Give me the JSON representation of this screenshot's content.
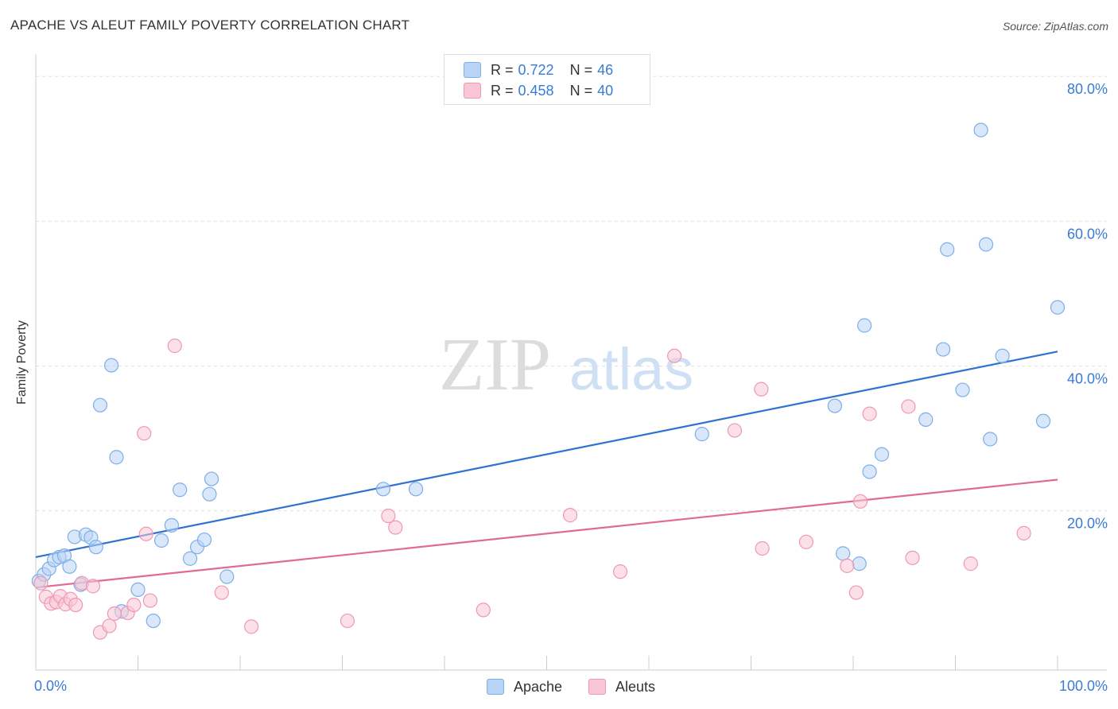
{
  "title": "APACHE VS ALEUT FAMILY POVERTY CORRELATION CHART",
  "source": "Source: ZipAtlas.com",
  "watermark": {
    "zip": "ZIP",
    "atlas": "atlas"
  },
  "legend": {
    "rows": [
      {
        "r_label": "R =",
        "r_value": "0.722",
        "n_label": "N =",
        "n_value": "46"
      },
      {
        "r_label": "R =",
        "r_value": "0.458",
        "n_label": "N =",
        "n_value": "40"
      }
    ]
  },
  "colors": {
    "apache_fill": "#b8d3f5",
    "apache_stroke": "#7eaee6",
    "apache_line": "#2f72d0",
    "aleut_fill": "#f9c6d5",
    "aleut_stroke": "#ef98b3",
    "aleut_line": "#e06b93",
    "grid": "#e0e0e0",
    "tick_text": "#3a7bd5"
  },
  "chart_data": {
    "type": "scatter",
    "title": "APACHE VS ALEUT FAMILY POVERTY CORRELATION CHART",
    "xlabel": "",
    "ylabel": "Family Poverty",
    "xlim": [
      0,
      100
    ],
    "ylim": [
      -2,
      82
    ],
    "x_tick_labels": [
      "0.0%",
      "100.0%"
    ],
    "y_ticks": [
      20,
      40,
      60,
      80
    ],
    "y_tick_labels": [
      "20.0%",
      "40.0%",
      "60.0%",
      "80.0%"
    ],
    "grid": "horizontal dashed",
    "legend_position": "top-center",
    "series": [
      {
        "name": "Apache",
        "trend": [
          [
            0,
            13.6
          ],
          [
            100,
            42.0
          ]
        ],
        "points": [
          [
            0.3,
            10.3
          ],
          [
            0.8,
            11.2
          ],
          [
            1.3,
            12.0
          ],
          [
            1.8,
            13.2
          ],
          [
            2.3,
            13.6
          ],
          [
            2.8,
            13.8
          ],
          [
            3.3,
            12.3
          ],
          [
            3.8,
            16.4
          ],
          [
            4.4,
            9.8
          ],
          [
            4.9,
            16.7
          ],
          [
            5.4,
            16.3
          ],
          [
            5.9,
            15.0
          ],
          [
            6.3,
            34.6
          ],
          [
            7.4,
            40.1
          ],
          [
            7.9,
            27.4
          ],
          [
            8.4,
            6.1
          ],
          [
            10.0,
            9.1
          ],
          [
            11.5,
            4.8
          ],
          [
            12.3,
            15.9
          ],
          [
            13.3,
            18.0
          ],
          [
            14.1,
            22.9
          ],
          [
            15.1,
            13.4
          ],
          [
            15.8,
            15.0
          ],
          [
            16.5,
            16.0
          ],
          [
            17.0,
            22.3
          ],
          [
            17.2,
            24.4
          ],
          [
            18.7,
            10.9
          ],
          [
            34.0,
            23.0
          ],
          [
            37.2,
            23.0
          ],
          [
            65.2,
            30.6
          ],
          [
            78.2,
            34.5
          ],
          [
            79.0,
            14.1
          ],
          [
            80.6,
            12.7
          ],
          [
            81.1,
            45.6
          ],
          [
            81.6,
            25.4
          ],
          [
            82.8,
            27.8
          ],
          [
            87.1,
            32.6
          ],
          [
            88.8,
            42.3
          ],
          [
            89.2,
            56.1
          ],
          [
            90.7,
            36.7
          ],
          [
            92.5,
            72.6
          ],
          [
            93.0,
            56.8
          ],
          [
            93.4,
            29.9
          ],
          [
            94.6,
            41.4
          ],
          [
            98.6,
            32.4
          ],
          [
            100.0,
            48.1
          ]
        ]
      },
      {
        "name": "Aleuts",
        "trend": [
          [
            0,
            9.4
          ],
          [
            100,
            24.3
          ]
        ],
        "points": [
          [
            0.5,
            10.0
          ],
          [
            1.0,
            8.1
          ],
          [
            1.5,
            7.2
          ],
          [
            2.0,
            7.4
          ],
          [
            2.4,
            8.2
          ],
          [
            2.9,
            7.1
          ],
          [
            3.4,
            7.8
          ],
          [
            3.9,
            7.0
          ],
          [
            4.5,
            10.0
          ],
          [
            5.6,
            9.6
          ],
          [
            6.3,
            3.2
          ],
          [
            7.2,
            4.1
          ],
          [
            7.7,
            5.8
          ],
          [
            9.0,
            5.9
          ],
          [
            9.6,
            7.0
          ],
          [
            10.6,
            30.7
          ],
          [
            10.8,
            16.8
          ],
          [
            11.2,
            7.6
          ],
          [
            13.6,
            42.8
          ],
          [
            18.2,
            8.7
          ],
          [
            21.1,
            4.0
          ],
          [
            30.5,
            4.8
          ],
          [
            34.5,
            19.3
          ],
          [
            35.2,
            17.7
          ],
          [
            43.8,
            6.3
          ],
          [
            52.3,
            19.4
          ],
          [
            57.2,
            11.6
          ],
          [
            62.5,
            41.4
          ],
          [
            68.4,
            31.1
          ],
          [
            71.0,
            36.8
          ],
          [
            71.1,
            14.8
          ],
          [
            75.4,
            15.7
          ],
          [
            79.4,
            12.4
          ],
          [
            80.3,
            8.7
          ],
          [
            80.7,
            21.3
          ],
          [
            81.6,
            33.4
          ],
          [
            85.4,
            34.4
          ],
          [
            85.8,
            13.5
          ],
          [
            91.5,
            12.7
          ],
          [
            96.7,
            16.9
          ]
        ]
      }
    ]
  }
}
